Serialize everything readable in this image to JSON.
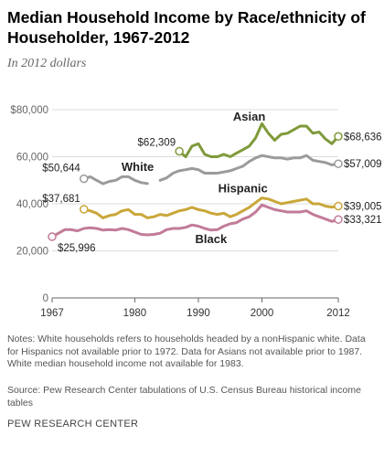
{
  "header": {
    "title": "Median Household Income by Race/ethnicity of Householder, 1967-2012",
    "subtitle": "In 2012 dollars"
  },
  "footer": {
    "notes": "Notes: White households refers to households headed by a nonHispanic white. Data for Hispanics not available prior to 1972. Data for Asians not available prior to 1987. White median household income not available for 1983.",
    "source": "Source: Pew Research Center tabulations of U.S. Census Bureau historical income tables",
    "brand": "PEW RESEARCH CENTER"
  },
  "chart_data": {
    "type": "line",
    "xlim": [
      1967,
      2012
    ],
    "ylim": [
      0,
      80000
    ],
    "x_ticks": [
      1967,
      1980,
      1990,
      2000,
      2012
    ],
    "y_ticks": [
      0,
      20000,
      40000,
      60000,
      80000
    ],
    "y_tick_labels": [
      "0",
      "20,000",
      "40,000",
      "60,000",
      "$80,000"
    ],
    "grid": true,
    "series": [
      {
        "name": "Asian",
        "color": "#7f9a3a",
        "start_label": "$62,309",
        "end_label": "$68,636",
        "points": [
          [
            1987,
            62309
          ],
          [
            1988,
            60000
          ],
          [
            1989,
            64500
          ],
          [
            1990,
            65500
          ],
          [
            1991,
            61000
          ],
          [
            1992,
            60000
          ],
          [
            1993,
            60000
          ],
          [
            1994,
            61000
          ],
          [
            1995,
            60000
          ],
          [
            1996,
            61500
          ],
          [
            1997,
            63000
          ],
          [
            1998,
            64500
          ],
          [
            1999,
            68000
          ],
          [
            2000,
            74000
          ],
          [
            2001,
            70000
          ],
          [
            2002,
            67000
          ],
          [
            2003,
            69500
          ],
          [
            2004,
            70000
          ],
          [
            2005,
            71500
          ],
          [
            2006,
            73000
          ],
          [
            2007,
            73000
          ],
          [
            2008,
            70000
          ],
          [
            2009,
            70500
          ],
          [
            2010,
            67500
          ],
          [
            2011,
            65500
          ],
          [
            2012,
            68636
          ]
        ]
      },
      {
        "name": "White",
        "color": "#9b9b9b",
        "start_label": "$50,644",
        "end_label": "$57,009",
        "segments": [
          [
            [
              1972,
              50644
            ],
            [
              1973,
              51500
            ],
            [
              1974,
              50000
            ],
            [
              1975,
              48500
            ],
            [
              1976,
              49500
            ],
            [
              1977,
              50000
            ],
            [
              1978,
              51500
            ],
            [
              1979,
              51500
            ],
            [
              1980,
              50000
            ],
            [
              1981,
              49000
            ],
            [
              1982,
              48600
            ]
          ],
          [
            [
              1984,
              50000
            ],
            [
              1985,
              51000
            ],
            [
              1986,
              53000
            ],
            [
              1987,
              54000
            ],
            [
              1988,
              54500
            ],
            [
              1989,
              55000
            ],
            [
              1990,
              54500
            ],
            [
              1991,
              53000
            ],
            [
              1992,
              53000
            ],
            [
              1993,
              53000
            ],
            [
              1994,
              53500
            ],
            [
              1995,
              54000
            ],
            [
              1996,
              55000
            ],
            [
              1997,
              56000
            ],
            [
              1998,
              58000
            ],
            [
              1999,
              59500
            ],
            [
              2000,
              60500
            ],
            [
              2001,
              60000
            ],
            [
              2002,
              59500
            ],
            [
              2003,
              59500
            ],
            [
              2004,
              59000
            ],
            [
              2005,
              59500
            ],
            [
              2006,
              59500
            ],
            [
              2007,
              60500
            ],
            [
              2008,
              58500
            ],
            [
              2009,
              58000
            ],
            [
              2010,
              57500
            ],
            [
              2011,
              56500
            ],
            [
              2012,
              57009
            ]
          ]
        ]
      },
      {
        "name": "Hispanic",
        "color": "#c9a73a",
        "start_label": "$37,681",
        "end_label": "$39,005",
        "points": [
          [
            1972,
            37681
          ],
          [
            1973,
            37000
          ],
          [
            1974,
            36000
          ],
          [
            1975,
            34000
          ],
          [
            1976,
            35000
          ],
          [
            1977,
            35500
          ],
          [
            1978,
            37000
          ],
          [
            1979,
            37500
          ],
          [
            1980,
            35500
          ],
          [
            1981,
            35500
          ],
          [
            1982,
            34000
          ],
          [
            1983,
            34500
          ],
          [
            1984,
            35500
          ],
          [
            1985,
            35000
          ],
          [
            1986,
            36000
          ],
          [
            1987,
            37000
          ],
          [
            1988,
            37500
          ],
          [
            1989,
            38500
          ],
          [
            1990,
            37500
          ],
          [
            1991,
            37000
          ],
          [
            1992,
            36000
          ],
          [
            1993,
            35500
          ],
          [
            1994,
            36000
          ],
          [
            1995,
            34500
          ],
          [
            1996,
            35500
          ],
          [
            1997,
            37000
          ],
          [
            1998,
            38500
          ],
          [
            1999,
            40500
          ],
          [
            2000,
            42500
          ],
          [
            2001,
            42000
          ],
          [
            2002,
            41000
          ],
          [
            2003,
            40000
          ],
          [
            2004,
            40500
          ],
          [
            2005,
            41000
          ],
          [
            2006,
            41500
          ],
          [
            2007,
            42000
          ],
          [
            2008,
            40000
          ],
          [
            2009,
            40000
          ],
          [
            2010,
            39000
          ],
          [
            2011,
            38600
          ],
          [
            2012,
            39005
          ]
        ]
      },
      {
        "name": "Black",
        "color": "#c27b98",
        "start_label": "$25,996",
        "end_label": "$33,321",
        "points": [
          [
            1967,
            25996
          ],
          [
            1968,
            27500
          ],
          [
            1969,
            29000
          ],
          [
            1970,
            29000
          ],
          [
            1971,
            28500
          ],
          [
            1972,
            29500
          ],
          [
            1973,
            29800
          ],
          [
            1974,
            29500
          ],
          [
            1975,
            28800
          ],
          [
            1976,
            29000
          ],
          [
            1977,
            28800
          ],
          [
            1978,
            29500
          ],
          [
            1979,
            29000
          ],
          [
            1980,
            28000
          ],
          [
            1981,
            27000
          ],
          [
            1982,
            26800
          ],
          [
            1983,
            27000
          ],
          [
            1984,
            27500
          ],
          [
            1985,
            29000
          ],
          [
            1986,
            29500
          ],
          [
            1987,
            29500
          ],
          [
            1988,
            30000
          ],
          [
            1989,
            31000
          ],
          [
            1990,
            30500
          ],
          [
            1991,
            29500
          ],
          [
            1992,
            28800
          ],
          [
            1993,
            29000
          ],
          [
            1994,
            30500
          ],
          [
            1995,
            31500
          ],
          [
            1996,
            32000
          ],
          [
            1997,
            33500
          ],
          [
            1998,
            34500
          ],
          [
            1999,
            36500
          ],
          [
            2000,
            39500
          ],
          [
            2001,
            38500
          ],
          [
            2002,
            37500
          ],
          [
            2003,
            37000
          ],
          [
            2004,
            36500
          ],
          [
            2005,
            36500
          ],
          [
            2006,
            36500
          ],
          [
            2007,
            37000
          ],
          [
            2008,
            35500
          ],
          [
            2009,
            34500
          ],
          [
            2010,
            33500
          ],
          [
            2011,
            32500
          ],
          [
            2012,
            33321
          ]
        ]
      }
    ]
  }
}
